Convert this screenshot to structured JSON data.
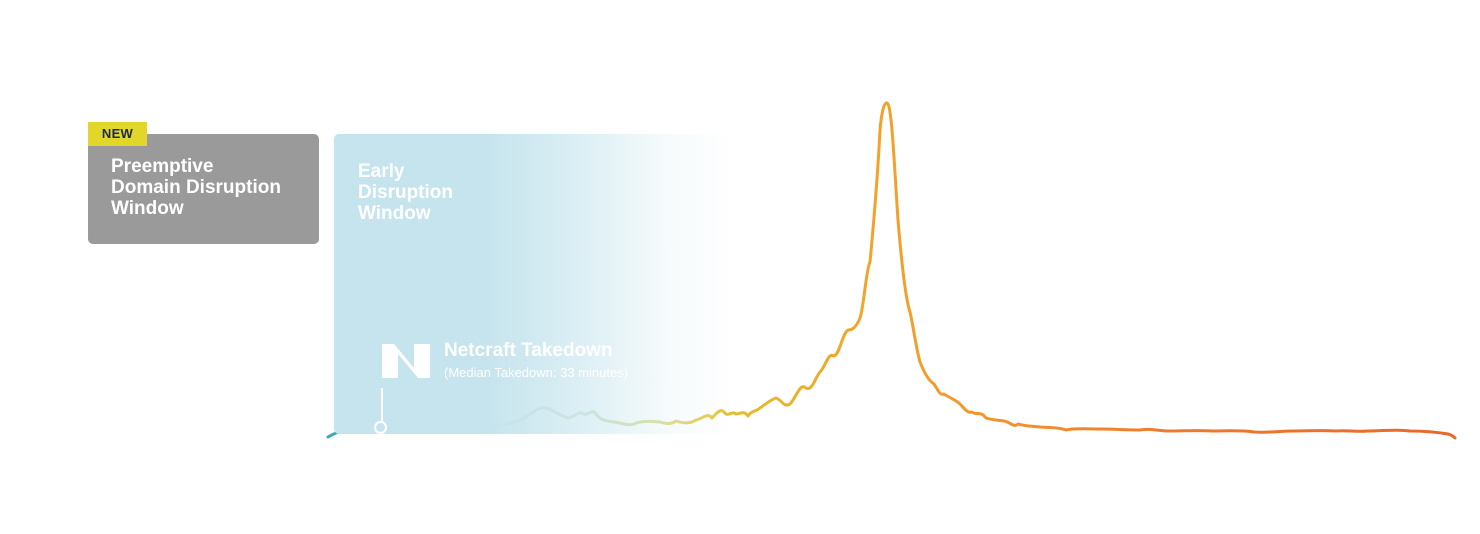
{
  "badge": {
    "text": "NEW",
    "color": "#e3d62a"
  },
  "preemptive_window": {
    "title": "Preemptive\nDomain Disruption\nWindow",
    "color": "#9a9a9a"
  },
  "early_window": {
    "title": "Early\nDisruption\nWindow",
    "color": "#c6e4ed"
  },
  "takedown": {
    "logo": "netcraft-logo-icon",
    "title": "Netcraft Takedown",
    "subtitle": "(Median Takedown: 33 minutes)"
  },
  "curve": {
    "description_colors": [
      "#3aa7b7",
      "#5fae9a",
      "#a8c25a",
      "#e0c430",
      "#f0a82a",
      "#f39a2c",
      "#ef7a2c",
      "#e8682c"
    ]
  }
}
